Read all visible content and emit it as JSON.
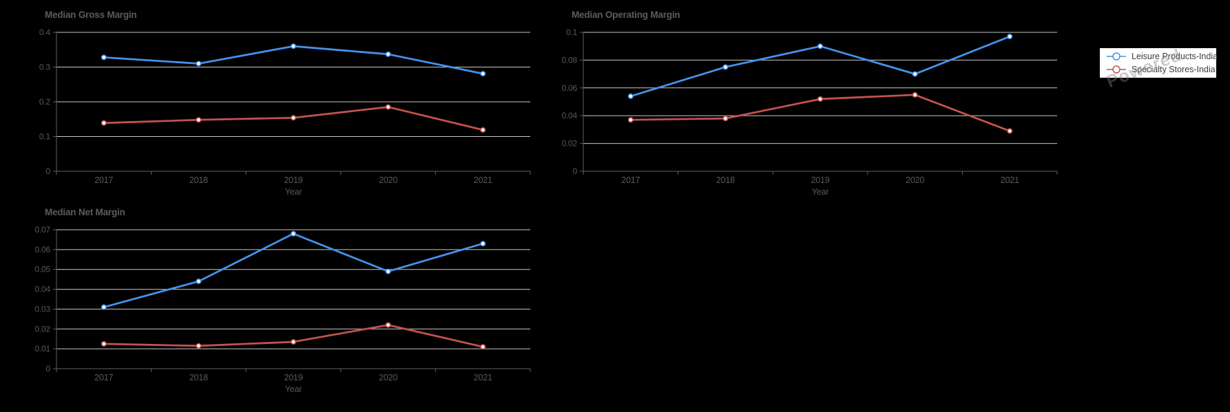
{
  "colors": {
    "background": "#000000",
    "grid": "#cacaca",
    "axis": "#5f5f5f",
    "tick_text": "#595959",
    "title_text": "#5c5c5c",
    "legend_text": "#3d3d3d",
    "legend_background": "#ffffff",
    "series_blue": "#4392EC",
    "series_red": "#C2524E",
    "marker_fill": "#ffffff"
  },
  "legend": {
    "position": "top-right",
    "items": [
      {
        "label": "Leisure Products-India",
        "color": "#4392EC",
        "marker": "open-circle-line"
      },
      {
        "label": "Specialty Stores-India",
        "color": "#C2524E",
        "marker": "open-circle-line"
      }
    ]
  },
  "watermark": {
    "text": "Powered"
  },
  "chart_data": [
    {
      "type": "line",
      "title": "Median Gross Margin",
      "xlabel": "Year",
      "ylabel": "",
      "categories": [
        "2017",
        "2018",
        "2019",
        "2020",
        "2021"
      ],
      "ylim": [
        0,
        0.4
      ],
      "yticks": [
        0,
        0.1,
        0.2,
        0.3,
        0.4
      ],
      "ytick_labels": [
        "0",
        "0.1",
        "0.2",
        "0.3",
        "0.4"
      ],
      "grid": true,
      "series": [
        {
          "name": "Leisure Products-India",
          "color": "#4392EC",
          "values": [
            0.328,
            0.31,
            0.36,
            0.337,
            0.281
          ]
        },
        {
          "name": "Specialty Stores-India",
          "color": "#C2524E",
          "values": [
            0.139,
            0.148,
            0.154,
            0.185,
            0.119
          ]
        }
      ]
    },
    {
      "type": "line",
      "title": "Median Operating Margin",
      "xlabel": "Year",
      "ylabel": "",
      "categories": [
        "2017",
        "2018",
        "2019",
        "2020",
        "2021"
      ],
      "ylim": [
        0,
        0.1
      ],
      "yticks": [
        0,
        0.02,
        0.04,
        0.06,
        0.08,
        0.1
      ],
      "ytick_labels": [
        "0",
        "0.02",
        "0.04",
        "0.06",
        "0.08",
        "0.1"
      ],
      "grid": true,
      "series": [
        {
          "name": "Leisure Products-India",
          "color": "#4392EC",
          "values": [
            0.054,
            0.075,
            0.09,
            0.07,
            0.097
          ]
        },
        {
          "name": "Specialty Stores-India",
          "color": "#C2524E",
          "values": [
            0.037,
            0.038,
            0.052,
            0.055,
            0.029
          ]
        }
      ]
    },
    {
      "type": "line",
      "title": "Median Net Margin",
      "xlabel": "Year",
      "ylabel": "",
      "categories": [
        "2017",
        "2018",
        "2019",
        "2020",
        "2021"
      ],
      "ylim": [
        0,
        0.07
      ],
      "yticks": [
        0,
        0.01,
        0.02,
        0.03,
        0.04,
        0.05,
        0.06,
        0.07
      ],
      "ytick_labels": [
        "0",
        "0.01",
        "0.02",
        "0.03",
        "0.04",
        "0.05",
        "0.06",
        "0.07"
      ],
      "grid": true,
      "series": [
        {
          "name": "Leisure Products-India",
          "color": "#4392EC",
          "values": [
            0.031,
            0.044,
            0.068,
            0.049,
            0.063
          ]
        },
        {
          "name": "Specialty Stores-India",
          "color": "#C2524E",
          "values": [
            0.0125,
            0.0115,
            0.0135,
            0.022,
            0.011
          ]
        }
      ]
    }
  ]
}
